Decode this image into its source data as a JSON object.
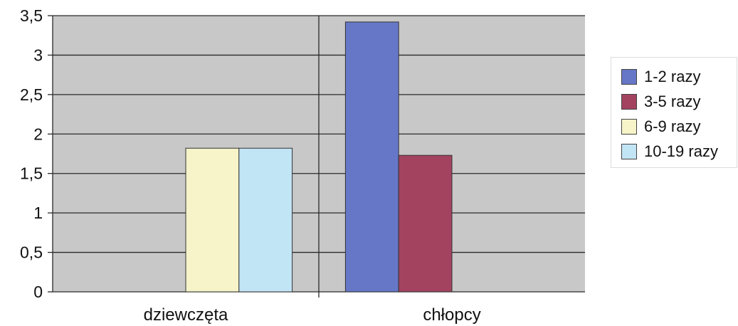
{
  "chart_data": {
    "type": "bar",
    "categories": [
      "dziewczęta",
      "chłopcy"
    ],
    "series": [
      {
        "name": "1-2 razy",
        "values": [
          0,
          3.42
        ],
        "color": "#6677c8"
      },
      {
        "name": "3-5 razy",
        "values": [
          0,
          1.73
        ],
        "color": "#a3435f"
      },
      {
        "name": "6-9 razy",
        "values": [
          1.82,
          0
        ],
        "color": "#f6f4c8"
      },
      {
        "name": "10-19 razy",
        "values": [
          1.82,
          0
        ],
        "color": "#c2e5f6"
      }
    ],
    "title": "",
    "xlabel": "",
    "ylabel": "",
    "ylim": [
      0,
      3.5
    ],
    "yticks": [
      "0",
      "0,5",
      "1",
      "1,5",
      "2",
      "2,5",
      "3",
      "3,5"
    ],
    "ytick_values": [
      0,
      0.5,
      1,
      1.5,
      2,
      2.5,
      3,
      3.5
    ],
    "grid": true,
    "legend_position": "right",
    "plot_background": "#c8c8c8"
  }
}
